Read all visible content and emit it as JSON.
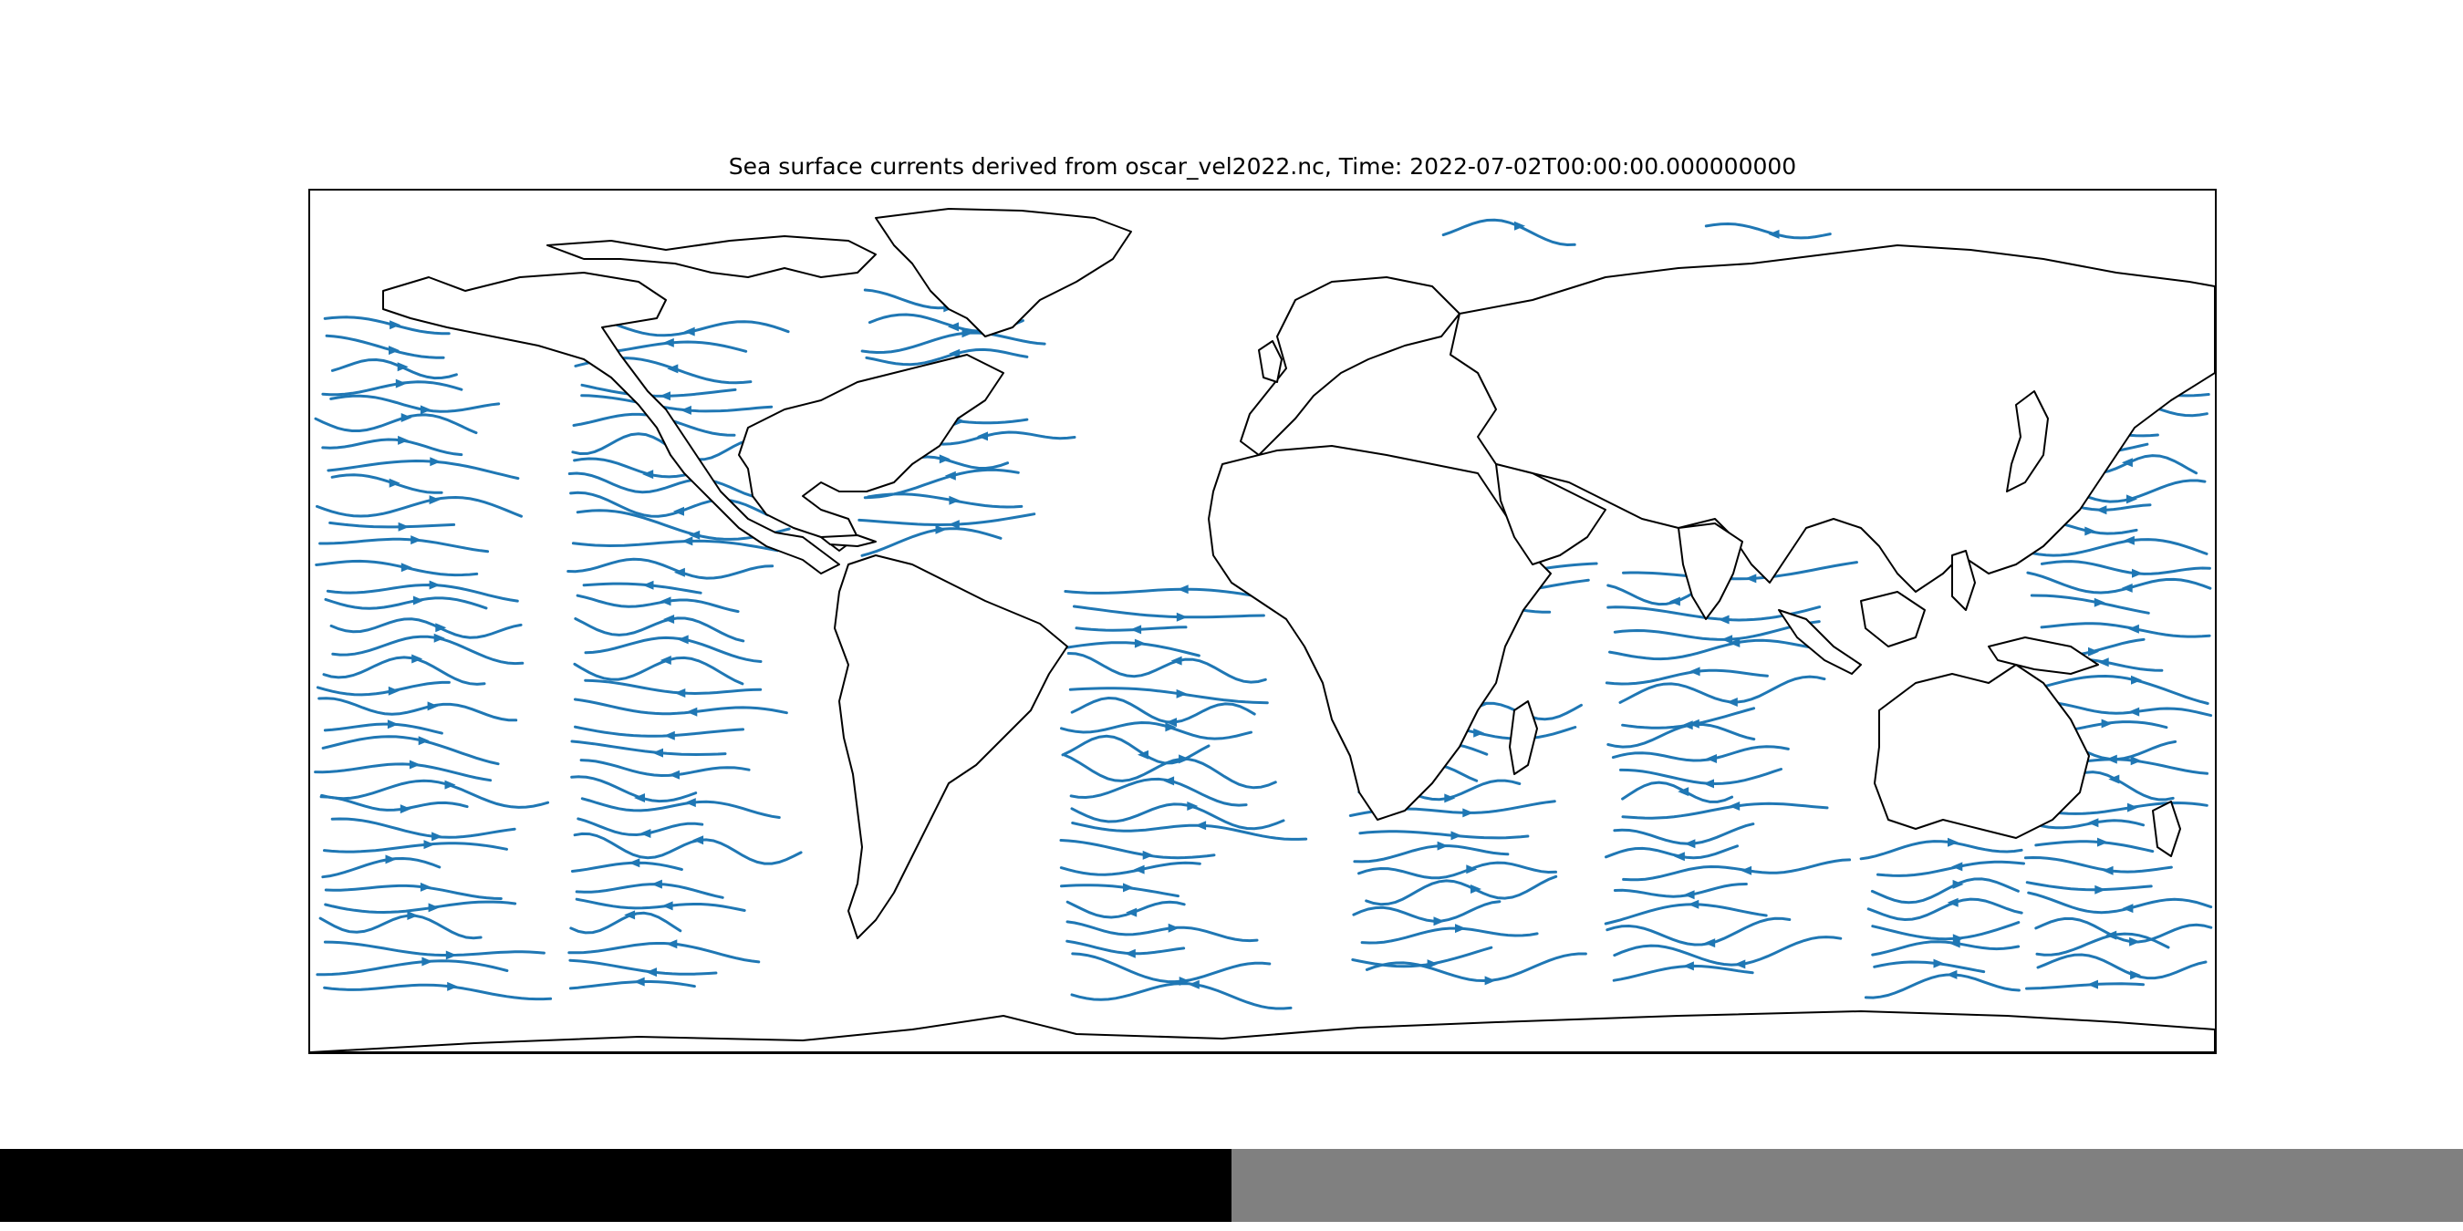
{
  "map": {
    "title": "Sea surface currents derived from oscar_vel2022.nc, Time: 2022-07-02T00:00:00.000000000",
    "projection": "PlateCarree",
    "extent_lon": [
      -180,
      180
    ],
    "extent_lat": [
      -80,
      90
    ],
    "layers": [
      "coastlines",
      "streamlines"
    ],
    "streamline_color": "#1f77b4",
    "coastline_color": "#000000",
    "frame_color": "#000000"
  },
  "status_bar": {
    "left_color": "#000000",
    "right_color": "#808080"
  }
}
